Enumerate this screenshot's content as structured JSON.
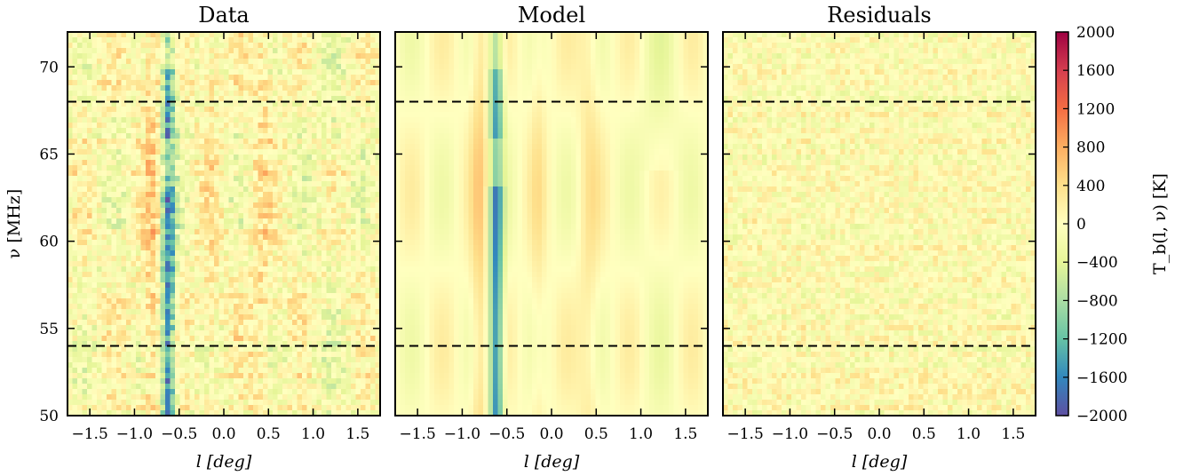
{
  "chart_data": {
    "type": "heatmap",
    "panels": [
      {
        "title": "Data",
        "xlabel": "l [deg]",
        "ylabel": "ν [MHz]",
        "kind": "data"
      },
      {
        "title": "Model",
        "xlabel": "l [deg]",
        "ylabel": "",
        "kind": "model"
      },
      {
        "title": "Residuals",
        "xlabel": "l [deg]",
        "ylabel": "",
        "kind": "residuals"
      }
    ],
    "xlim": [
      -1.75,
      1.75
    ],
    "ylim": [
      50,
      72
    ],
    "xticks": [
      -1.5,
      -1.0,
      -0.5,
      0.0,
      0.5,
      1.0,
      1.5
    ],
    "xtick_labels": [
      "−1.5",
      "−1.0",
      "−0.5",
      "0.0",
      "0.5",
      "1.0",
      "1.5"
    ],
    "yticks": [
      50,
      55,
      60,
      65,
      70
    ],
    "ytick_labels": [
      "50",
      "55",
      "60",
      "65",
      "70"
    ],
    "reference_lines_mhz": [
      54,
      68
    ],
    "colorbar": {
      "label": "T_b(l, ν) [K]",
      "min": -2000,
      "max": 2000,
      "ticks": [
        2000,
        1600,
        1200,
        800,
        400,
        0,
        -400,
        -800,
        -1200,
        -1600,
        -2000
      ],
      "tick_labels": [
        "2000",
        "1600",
        "1200",
        "800",
        "400",
        "0",
        "−400",
        "−800",
        "−1200",
        "−1600",
        "−2000"
      ],
      "colormap": "Spectral_r"
    },
    "features": [
      {
        "description": "absorption trough",
        "l_deg": -0.62,
        "tb_k": -1600
      },
      {
        "description": "emission",
        "l_deg": -0.8,
        "tb_k": 700
      },
      {
        "description": "emission",
        "l_deg": 0.42,
        "tb_k": 500
      }
    ]
  }
}
